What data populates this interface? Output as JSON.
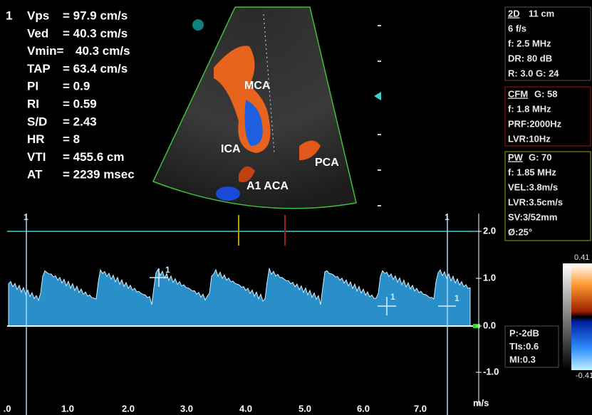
{
  "cursor_index": "1",
  "measurements": [
    {
      "label": "Vps",
      "value": "= 97.9 cm/s"
    },
    {
      "label": "Ved",
      "value": "= 40.3 cm/s"
    },
    {
      "label": "Vmin=",
      "value": "40.3 cm/s"
    },
    {
      "label": "TAP",
      "value": "= 63.4 cm/s"
    },
    {
      "label": "PI",
      "value": "= 0.9"
    },
    {
      "label": "RI",
      "value": "= 0.59"
    },
    {
      "label": "S/D",
      "value": "= 2.43"
    },
    {
      "label": "HR",
      "value": "= 8"
    },
    {
      "label": "VTI",
      "value": "= 455.6 cm"
    },
    {
      "label": "AT",
      "value": "= 2239 msec"
    }
  ],
  "image_labels": [
    "MCA",
    "ICA",
    "PCA",
    "A1 ACA"
  ],
  "panels": [
    {
      "mode": "2D",
      "header": "11 cm",
      "lines": [
        "6 f/s",
        "f: 2.5 MHz",
        "DR: 80 dB",
        "R: 3.0   G: 24"
      ]
    },
    {
      "mode": "CFM",
      "header": "G: 58",
      "lines": [
        "f: 1.8 MHz",
        "PRF:2000Hz",
        "LVR:10Hz"
      ]
    },
    {
      "mode": "PW",
      "header": "G: 70",
      "lines": [
        "f: 1.85 MHz",
        "VEL:3.8m/s",
        "LVR:3.5cm/s",
        "SV:3/52mm",
        "Ø:25°"
      ]
    }
  ],
  "power": [
    "P:-2dB",
    "TIs:0.6",
    "MI:0.3"
  ],
  "velocity_ticks": [
    "2.0",
    "1.0",
    "0.0",
    "-1.0"
  ],
  "velocity_unit": "m/s",
  "time_ticks": [
    ".0",
    "1.0",
    "2.0",
    "3.0",
    "4.0",
    "5.0",
    "6.0",
    "7.0"
  ],
  "color_scale": [
    "0.41",
    "-0.41"
  ],
  "caliper_labels": [
    "1",
    "1",
    "1",
    "1",
    "1"
  ]
}
